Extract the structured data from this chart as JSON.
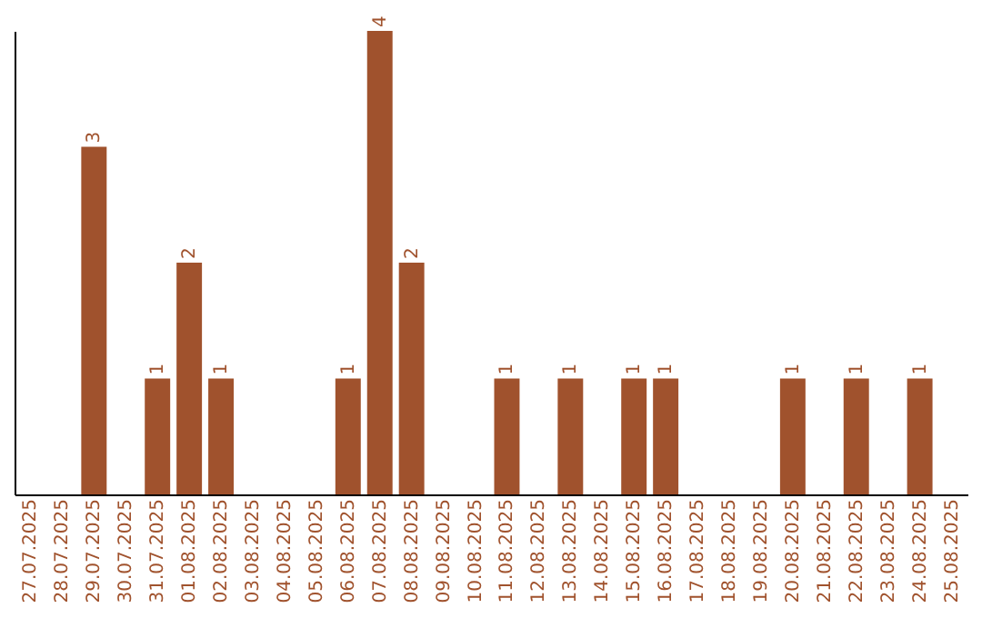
{
  "chart_data": {
    "type": "bar",
    "categories": [
      "27.07.2025",
      "28.07.2025",
      "29.07.2025",
      "30.07.2025",
      "31.07.2025",
      "01.08.2025",
      "02.08.2025",
      "03.08.2025",
      "04.08.2025",
      "05.08.2025",
      "06.08.2025",
      "07.08.2025",
      "08.08.2025",
      "09.08.2025",
      "10.08.2025",
      "11.08.2025",
      "12.08.2025",
      "13.08.2025",
      "14.08.2025",
      "15.08.2025",
      "16.08.2025",
      "17.08.2025",
      "18.08.2025",
      "19.08.2025",
      "20.08.2025",
      "21.08.2025",
      "22.08.2025",
      "23.08.2025",
      "24.08.2025",
      "25.08.2025"
    ],
    "values": [
      0,
      0,
      3,
      0,
      1,
      2,
      1,
      0,
      0,
      0,
      1,
      4,
      2,
      0,
      0,
      1,
      0,
      1,
      0,
      1,
      1,
      0,
      0,
      0,
      1,
      0,
      1,
      0,
      1,
      0
    ],
    "value_labels": [
      null,
      null,
      "3",
      null,
      "1",
      "2",
      "1",
      null,
      null,
      null,
      "1",
      "4",
      "2",
      null,
      null,
      "1",
      null,
      "1",
      null,
      "1",
      "1",
      null,
      null,
      null,
      "1",
      null,
      "1",
      null,
      "1",
      null
    ],
    "color": "#a0522d",
    "grid": false,
    "tick_labels": "x"
  }
}
